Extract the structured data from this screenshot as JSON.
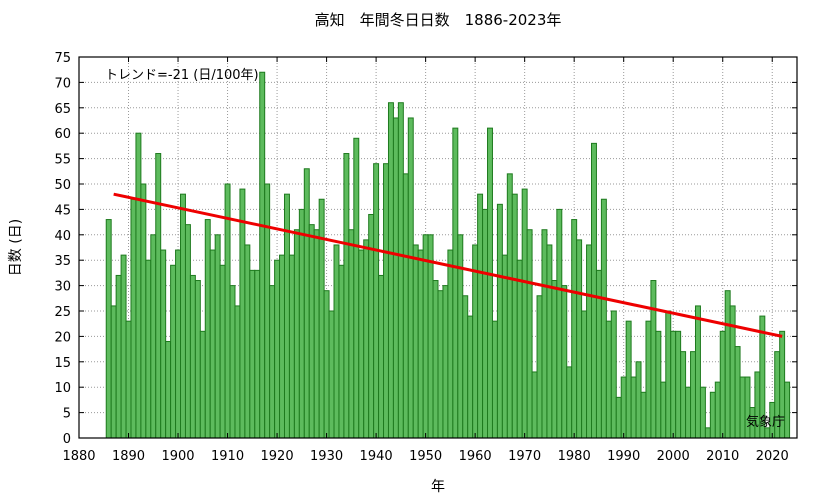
{
  "chart_data": {
    "type": "bar",
    "title": "高知　年間冬日日数　1886-2023年",
    "xlabel": "年",
    "ylabel": "日数 (日)",
    "annotation": "トレンド=-21 (日/100年)",
    "credit": "気象庁",
    "xlim": [
      1880,
      2025
    ],
    "ylim": [
      0,
      75
    ],
    "x_ticks": [
      1880,
      1890,
      1900,
      1910,
      1920,
      1930,
      1940,
      1950,
      1960,
      1970,
      1980,
      1990,
      2000,
      2010,
      2020
    ],
    "y_ticks": [
      0,
      5,
      10,
      15,
      20,
      25,
      30,
      35,
      40,
      45,
      50,
      55,
      60,
      65,
      70,
      75
    ],
    "grid": true,
    "bar_color": "#5dbb5d",
    "bar_edge_color": "#1e7a1e",
    "trend_color": "#ee0000",
    "years": [
      1886,
      1887,
      1888,
      1889,
      1890,
      1891,
      1892,
      1893,
      1894,
      1895,
      1896,
      1897,
      1898,
      1899,
      1900,
      1901,
      1902,
      1903,
      1904,
      1905,
      1906,
      1907,
      1908,
      1909,
      1910,
      1911,
      1912,
      1913,
      1914,
      1915,
      1916,
      1917,
      1918,
      1919,
      1920,
      1921,
      1922,
      1923,
      1924,
      1925,
      1926,
      1927,
      1928,
      1929,
      1930,
      1931,
      1932,
      1933,
      1934,
      1935,
      1936,
      1937,
      1938,
      1939,
      1940,
      1941,
      1942,
      1943,
      1944,
      1945,
      1946,
      1947,
      1948,
      1949,
      1950,
      1951,
      1952,
      1953,
      1954,
      1955,
      1956,
      1957,
      1958,
      1959,
      1960,
      1961,
      1962,
      1963,
      1964,
      1965,
      1966,
      1967,
      1968,
      1969,
      1970,
      1971,
      1972,
      1973,
      1974,
      1975,
      1976,
      1977,
      1978,
      1979,
      1980,
      1981,
      1982,
      1983,
      1984,
      1985,
      1986,
      1987,
      1988,
      1989,
      1990,
      1991,
      1992,
      1993,
      1994,
      1995,
      1996,
      1997,
      1998,
      1999,
      2000,
      2001,
      2002,
      2003,
      2004,
      2005,
      2006,
      2007,
      2008,
      2009,
      2010,
      2011,
      2012,
      2013,
      2014,
      2015,
      2016,
      2017,
      2018,
      2019,
      2020,
      2021,
      2022,
      2023
    ],
    "values": [
      43,
      26,
      32,
      36,
      23,
      47,
      60,
      50,
      35,
      40,
      56,
      37,
      19,
      34,
      37,
      48,
      42,
      32,
      31,
      21,
      43,
      37,
      40,
      34,
      50,
      30,
      26,
      49,
      38,
      33,
      33,
      72,
      50,
      30,
      35,
      36,
      48,
      36,
      41,
      45,
      53,
      42,
      41,
      47,
      29,
      25,
      38,
      34,
      56,
      41,
      59,
      37,
      39,
      44,
      54,
      32,
      54,
      66,
      63,
      66,
      52,
      63,
      38,
      37,
      40,
      40,
      31,
      29,
      30,
      37,
      61,
      40,
      28,
      24,
      38,
      48,
      45,
      61,
      23,
      46,
      36,
      52,
      48,
      35,
      49,
      41,
      13,
      28,
      41,
      38,
      31,
      45,
      30,
      14,
      43,
      39,
      25,
      38,
      58,
      33,
      47,
      23,
      25,
      8,
      12,
      23,
      12,
      15,
      9,
      23,
      31,
      21,
      11,
      25,
      21,
      21,
      17,
      10,
      17,
      26,
      10,
      2,
      9,
      11,
      21,
      29,
      26,
      18,
      12,
      12,
      6,
      13,
      24,
      2,
      7,
      17,
      21,
      11
    ],
    "trend_line": {
      "x": [
        1887,
        2022
      ],
      "y": [
        48,
        20
      ]
    }
  }
}
